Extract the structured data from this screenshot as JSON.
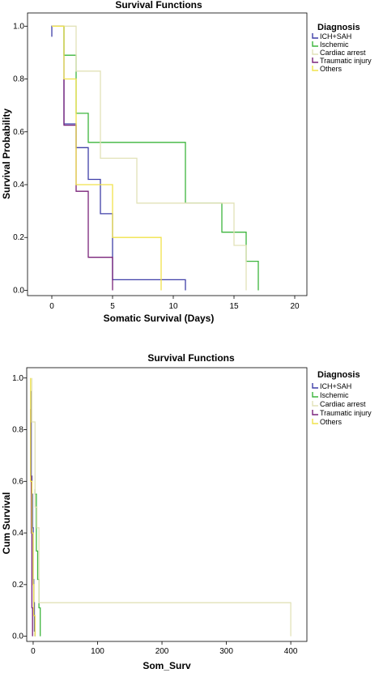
{
  "chart_data": [
    {
      "type": "line",
      "title": "Survival Functions",
      "xlabel": "Somatic Survival (Days)",
      "ylabel": "Survival Probability",
      "xlim": [
        -2,
        21
      ],
      "ylim": [
        -0.02,
        1.05
      ],
      "xticks": [
        0,
        5,
        10,
        15,
        20
      ],
      "yticks": [
        0.0,
        0.2,
        0.4,
        0.6,
        0.8,
        1.0
      ],
      "legend_title": "Diagnosis",
      "legend_position": "right",
      "grid": false,
      "series": [
        {
          "name": "ICH+SAH",
          "color": "#3f3fa8",
          "x": [
            0,
            0,
            1,
            1,
            2,
            2,
            3,
            3,
            4,
            4,
            5,
            5,
            11,
            11
          ],
          "y": [
            0.96,
            1.0,
            1.0,
            0.63,
            0.63,
            0.54,
            0.54,
            0.42,
            0.42,
            0.29,
            0.29,
            0.04,
            0.04,
            0.0
          ]
        },
        {
          "name": "Ischemic",
          "color": "#3db53d",
          "x": [
            1,
            1,
            2,
            2,
            3,
            3,
            11,
            11,
            14,
            14,
            16,
            16,
            17,
            17
          ],
          "y": [
            1.0,
            0.89,
            0.89,
            0.67,
            0.67,
            0.56,
            0.56,
            0.33,
            0.33,
            0.22,
            0.22,
            0.11,
            0.11,
            0.0
          ]
        },
        {
          "name": "Cardiac arrest",
          "color": "#e2e2b8",
          "x": [
            1,
            1,
            2,
            2,
            4,
            4,
            7,
            7,
            15,
            15,
            16,
            16
          ],
          "y": [
            1.0,
            1.0,
            1.0,
            0.83,
            0.83,
            0.5,
            0.5,
            0.33,
            0.33,
            0.17,
            0.17,
            0.0
          ]
        },
        {
          "name": "Traumatic injury",
          "color": "#7a237a",
          "x": [
            1,
            1,
            2,
            2,
            3,
            3,
            5,
            5
          ],
          "y": [
            0.8,
            0.625,
            0.625,
            0.375,
            0.375,
            0.125,
            0.125,
            0.0
          ]
        },
        {
          "name": "Others",
          "color": "#f0e24a",
          "x": [
            0,
            1,
            1,
            2,
            2,
            5,
            5,
            9,
            9
          ],
          "y": [
            1.0,
            1.0,
            0.8,
            0.8,
            0.4,
            0.4,
            0.2,
            0.2,
            0.0
          ]
        }
      ]
    },
    {
      "type": "line",
      "title": "Survival Functions",
      "xlabel": "Som_Surv",
      "ylabel": "Cum Survival",
      "xlim": [
        -10,
        425
      ],
      "ylim": [
        -0.02,
        1.04
      ],
      "xticks": [
        0,
        100,
        200,
        300,
        400
      ],
      "yticks": [
        0.0,
        0.2,
        0.4,
        0.6,
        0.8,
        1.0
      ],
      "legend_title": "Diagnosis",
      "legend_position": "right",
      "grid": false,
      "series": [
        {
          "name": "ICH+SAH",
          "color": "#3f3fa8",
          "x": [
            -3,
            -3,
            -2,
            -2,
            -1,
            -1,
            0,
            0,
            1,
            1,
            2,
            2,
            3,
            3
          ],
          "y": [
            0.95,
            0.62,
            0.62,
            0.55,
            0.55,
            0.42,
            0.42,
            0.22,
            0.22,
            0.13,
            0.13,
            0.02,
            0.02,
            0.0
          ]
        },
        {
          "name": "Ischemic",
          "color": "#3db53d",
          "x": [
            3,
            3,
            5,
            5,
            7,
            7,
            9,
            9,
            11,
            11
          ],
          "y": [
            0.57,
            0.55,
            0.55,
            0.33,
            0.33,
            0.22,
            0.22,
            0.11,
            0.11,
            0.0
          ]
        },
        {
          "name": "Cardiac arrest",
          "color": "#e2e2b8",
          "x": [
            -2,
            -2,
            3,
            3,
            6,
            6,
            9,
            9,
            400,
            400
          ],
          "y": [
            1.0,
            0.83,
            0.83,
            0.5,
            0.5,
            0.42,
            0.42,
            0.13,
            0.13,
            0.0
          ]
        },
        {
          "name": "Traumatic injury",
          "color": "#7a237a",
          "x": [
            -4,
            -4,
            -3,
            -3,
            -2,
            -2,
            -1,
            -1
          ],
          "y": [
            0.88,
            0.62,
            0.62,
            0.4,
            0.4,
            0.11,
            0.11,
            0.0
          ]
        },
        {
          "name": "Others",
          "color": "#f0e24a",
          "x": [
            -4,
            -4,
            -2,
            -2,
            0,
            0,
            1,
            1,
            3,
            3
          ],
          "y": [
            1.0,
            0.6,
            0.6,
            0.4,
            0.4,
            0.2,
            0.2,
            0.08,
            0.08,
            0.0
          ]
        }
      ]
    }
  ]
}
